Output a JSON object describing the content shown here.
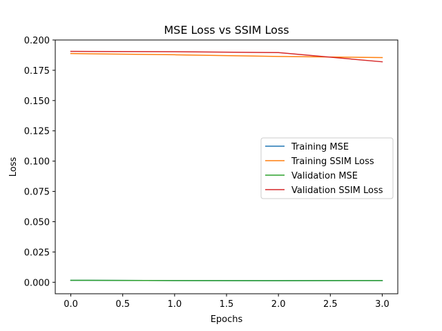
{
  "chart_data": {
    "type": "line",
    "title": "MSE Loss vs SSIM Loss",
    "xlabel": "Epochs",
    "ylabel": "Loss",
    "x": [
      0,
      1,
      2,
      3
    ],
    "xlim": [
      -0.15,
      3.15
    ],
    "ylim": [
      -0.0095,
      0.2
    ],
    "xticks": [
      0.0,
      0.5,
      1.0,
      1.5,
      2.0,
      2.5,
      3.0
    ],
    "xtick_labels": [
      "0.0",
      "0.5",
      "1.0",
      "1.5",
      "2.0",
      "2.5",
      "3.0"
    ],
    "yticks": [
      0.0,
      0.025,
      0.05,
      0.075,
      0.1,
      0.125,
      0.15,
      0.175,
      0.2
    ],
    "ytick_labels": [
      "0.000",
      "0.025",
      "0.050",
      "0.075",
      "0.100",
      "0.125",
      "0.150",
      "0.175",
      "0.200"
    ],
    "grid": false,
    "legend_position": "center-right",
    "series": [
      {
        "name": "Training MSE",
        "color": "#1f77b4",
        "values": [
          0.0016,
          0.0014,
          0.0013,
          0.0014
        ]
      },
      {
        "name": "Training SSIM Loss",
        "color": "#ff7f0e",
        "values": [
          0.1888,
          0.1878,
          0.1864,
          0.1855
        ]
      },
      {
        "name": "Validation MSE",
        "color": "#2ca02c",
        "values": [
          0.0016,
          0.0014,
          0.0013,
          0.0014
        ]
      },
      {
        "name": "Validation SSIM Loss",
        "color": "#d62728",
        "values": [
          0.1906,
          0.1903,
          0.1896,
          0.182
        ]
      }
    ]
  }
}
